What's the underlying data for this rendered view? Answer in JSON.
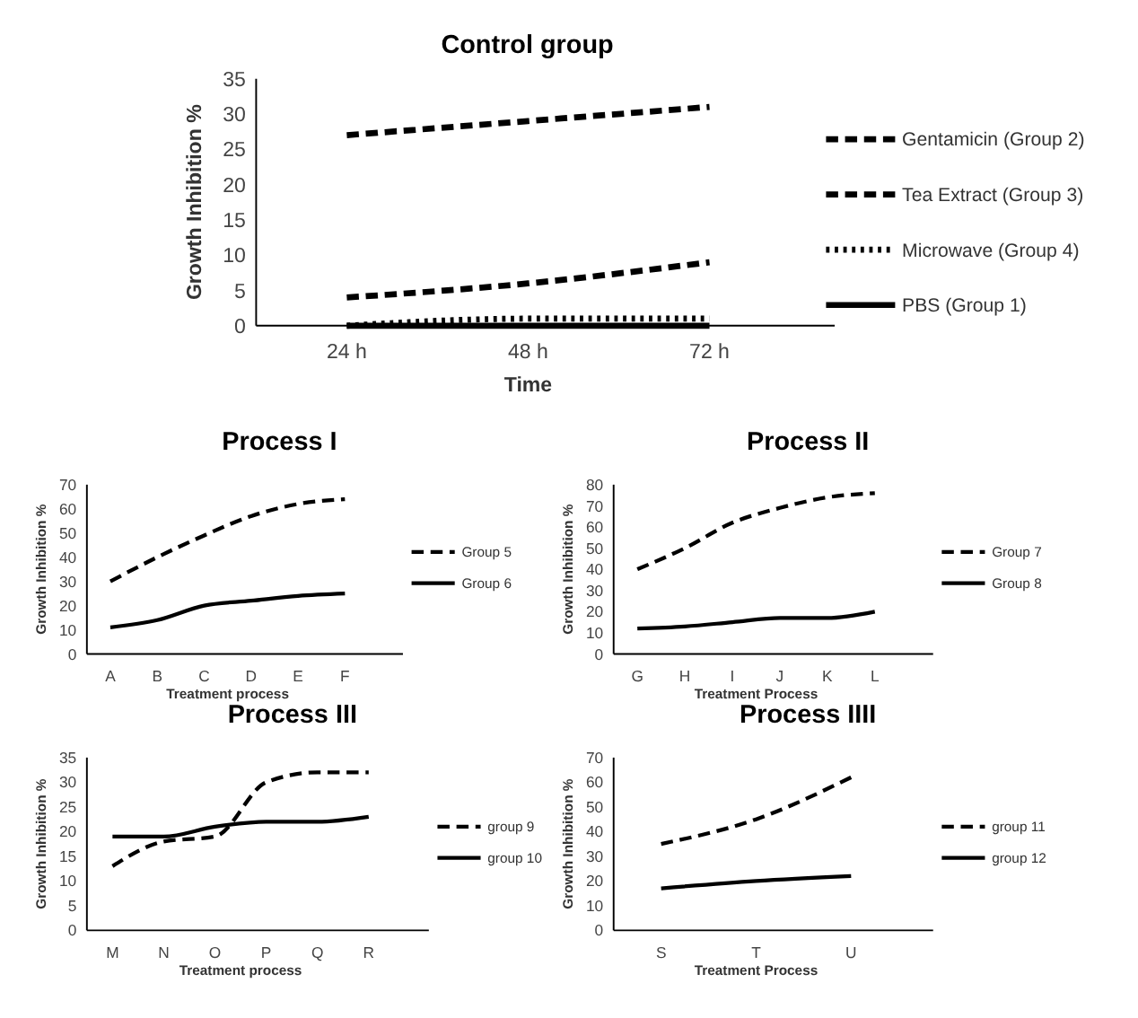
{
  "chart_data": [
    {
      "type": "line",
      "title": "Control group",
      "xlabel": "Time",
      "ylabel": "Growth Inhibition %",
      "categories": [
        "24 h",
        "48 h",
        "72 h"
      ],
      "ylim": [
        0,
        35
      ],
      "yticks": [
        0,
        5,
        10,
        15,
        20,
        25,
        30,
        35
      ],
      "grid": false,
      "legend": "right",
      "marker": "none",
      "series": [
        {
          "name": "Gentamicin (Group 2)",
          "color": "#000000",
          "line_style": "dashed",
          "values": [
            27,
            29,
            31
          ]
        },
        {
          "name": "Tea Extract (Group 3)",
          "color": "#000000",
          "line_style": "dashed",
          "values": [
            4,
            6,
            9
          ]
        },
        {
          "name": "Microwave (Group 4)",
          "color": "#000000",
          "line_style": "dotted",
          "values": [
            0,
            1,
            1
          ]
        },
        {
          "name": "PBS (Group 1)",
          "color": "#000000",
          "line_style": "solid",
          "values": [
            0,
            0,
            0
          ]
        }
      ]
    },
    {
      "type": "line",
      "title": "Process I",
      "xlabel": "Treatment process",
      "ylabel": "Growth Inhibition %",
      "categories": [
        "A",
        "B",
        "C",
        "D",
        "E",
        "F"
      ],
      "ylim": [
        0,
        70
      ],
      "yticks": [
        0,
        10,
        20,
        30,
        40,
        50,
        60,
        70
      ],
      "grid": false,
      "legend": "right",
      "marker": "none",
      "series": [
        {
          "name": "Group 5",
          "color": "#000000",
          "line_style": "dashed",
          "values": [
            30,
            40,
            49,
            57,
            62,
            64
          ]
        },
        {
          "name": "Group 6",
          "color": "#000000",
          "line_style": "solid",
          "values": [
            11,
            14,
            20,
            22,
            24,
            25
          ]
        }
      ]
    },
    {
      "type": "line",
      "title": "Process II",
      "xlabel": "Treatment Process",
      "ylabel": "Growth Inhibition %",
      "categories": [
        "G",
        "H",
        "I",
        "J",
        "K",
        "L"
      ],
      "ylim": [
        0,
        80
      ],
      "yticks": [
        0,
        10,
        20,
        30,
        40,
        50,
        60,
        70,
        80
      ],
      "grid": false,
      "legend": "right",
      "marker": "none",
      "series": [
        {
          "name": "Group 7",
          "color": "#000000",
          "line_style": "dashed",
          "values": [
            40,
            50,
            62,
            69,
            74,
            76
          ]
        },
        {
          "name": "Group 8",
          "color": "#000000",
          "line_style": "solid",
          "values": [
            12,
            13,
            15,
            17,
            17,
            20
          ]
        }
      ]
    },
    {
      "type": "line",
      "title": "Process III",
      "xlabel": "Treatment process",
      "ylabel": "Growth Inhibition %",
      "categories": [
        "M",
        "N",
        "O",
        "P",
        "Q",
        "R"
      ],
      "ylim": [
        0,
        35
      ],
      "yticks": [
        0,
        5,
        10,
        15,
        20,
        25,
        30,
        35
      ],
      "grid": false,
      "legend": "right",
      "marker": "none",
      "series": [
        {
          "name": "group 9",
          "color": "#000000",
          "line_style": "dashed",
          "values": [
            13,
            18,
            19,
            30,
            32,
            32
          ]
        },
        {
          "name": "group 10",
          "color": "#000000",
          "line_style": "solid",
          "values": [
            19,
            19,
            21,
            22,
            22,
            23
          ]
        }
      ]
    },
    {
      "type": "line",
      "title": "Process IIII",
      "xlabel": "Treatment Process",
      "ylabel": "Growth Inhibition %",
      "categories": [
        "S",
        "T",
        "U"
      ],
      "ylim": [
        0,
        70
      ],
      "yticks": [
        0,
        10,
        20,
        30,
        40,
        50,
        60,
        70
      ],
      "grid": false,
      "legend": "right",
      "marker": "none",
      "series": [
        {
          "name": "group 11",
          "color": "#000000",
          "line_style": "dashed",
          "values": [
            35,
            45,
            62
          ]
        },
        {
          "name": "group 12",
          "color": "#000000",
          "line_style": "solid",
          "values": [
            17,
            20,
            22
          ]
        }
      ]
    }
  ]
}
